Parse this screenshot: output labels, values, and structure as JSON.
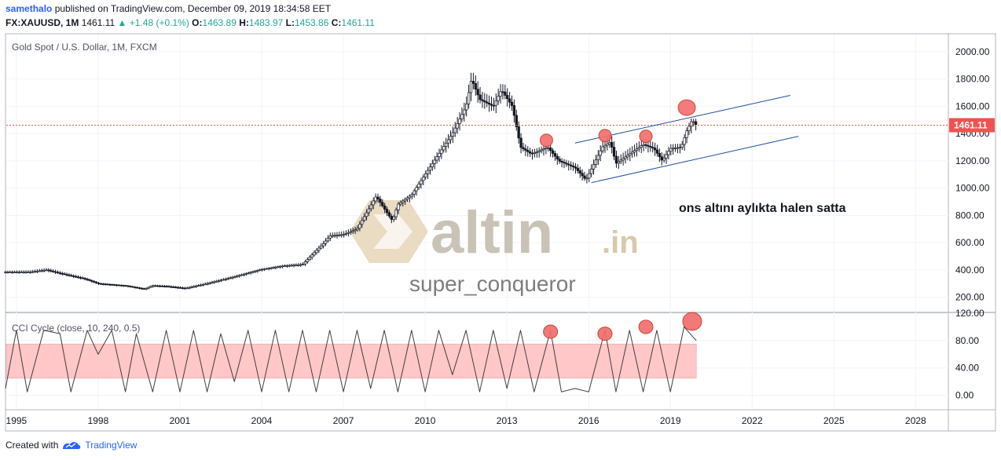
{
  "header": {
    "author": "samethalo",
    "published_text": "published on TradingView.com, December 09, 2019 18:34:58 EET",
    "symbol": "FX:XAUUSD, 1M",
    "last": "1461.11",
    "change_arrow": "▲",
    "change": "+1.48 (+0.1%)",
    "open_label": "O:",
    "open": "1463.89",
    "high_label": "H:",
    "high": "1483.97",
    "low_label": "L:",
    "low": "1453.86",
    "close_label": "C:",
    "close": "1461.11"
  },
  "main_pane": {
    "legend": "Gold Spot / U.S. Dollar, 1M, FXCM",
    "annotation": "ons altını aylıkta halen satta",
    "price_label": "1461.11",
    "watermark_brand": "altin",
    "watermark_tld": ".in",
    "watermark_user": "super_conqueror"
  },
  "indicator_pane": {
    "legend": "CCI Cycle (close, 10, 240, 0.5)"
  },
  "footer": {
    "created_with": "Created with",
    "brand": "TradingView"
  },
  "colors": {
    "up_text": "#26a69a",
    "price_line": "#ef5350",
    "price_label_bg": "#ef5350",
    "channel": "#1e4fa0",
    "marker_fill": "#f36d6d",
    "band_fill": "#ffc7c7",
    "watermark": "#c9c2b6",
    "watermark_logo": "#e6d5b8"
  },
  "chart_data": [
    {
      "type": "candlestick",
      "title": "Gold Spot / U.S. Dollar, 1M, FXCM",
      "x_ticks": [
        "1995",
        "1998",
        "2001",
        "2004",
        "2007",
        "2010",
        "2013",
        "2016",
        "2019",
        "2022",
        "2025",
        "2028"
      ],
      "y_ticks": [
        "2000.00",
        "1800.00",
        "1600.00",
        "1400.00",
        "1200.00",
        "1000.00",
        "800.00",
        "600.00",
        "400.00",
        "200.00"
      ],
      "xlim": [
        1994.6,
        2029.2
      ],
      "ylim": [
        100,
        2120
      ],
      "last_price": 1461.11,
      "price_path": [
        [
          1994.6,
          385
        ],
        [
          1995.5,
          385
        ],
        [
          1996.1,
          400
        ],
        [
          1996.6,
          375
        ],
        [
          1997.5,
          335
        ],
        [
          1998.0,
          300
        ],
        [
          1999.0,
          285
        ],
        [
          1999.7,
          260
        ],
        [
          2000.0,
          285
        ],
        [
          2000.5,
          280
        ],
        [
          2001.2,
          265
        ],
        [
          2002.0,
          300
        ],
        [
          2003.0,
          350
        ],
        [
          2004.0,
          405
        ],
        [
          2004.8,
          430
        ],
        [
          2005.5,
          440
        ],
        [
          2006.3,
          600
        ],
        [
          2006.5,
          650
        ],
        [
          2007.0,
          660
        ],
        [
          2007.5,
          700
        ],
        [
          2008.2,
          940
        ],
        [
          2008.8,
          760
        ],
        [
          2009.0,
          880
        ],
        [
          2009.5,
          950
        ],
        [
          2010.0,
          1100
        ],
        [
          2010.5,
          1250
        ],
        [
          2011.0,
          1400
        ],
        [
          2011.5,
          1600
        ],
        [
          2011.7,
          1800
        ],
        [
          2012.0,
          1650
        ],
        [
          2012.5,
          1600
        ],
        [
          2012.8,
          1720
        ],
        [
          2013.2,
          1600
        ],
        [
          2013.5,
          1300
        ],
        [
          2013.9,
          1250
        ],
        [
          2014.5,
          1300
        ],
        [
          2014.9,
          1200
        ],
        [
          2015.5,
          1150
        ],
        [
          2015.9,
          1060
        ],
        [
          2016.5,
          1300
        ],
        [
          2016.8,
          1340
        ],
        [
          2017.0,
          1180
        ],
        [
          2017.5,
          1250
        ],
        [
          2018.0,
          1320
        ],
        [
          2018.4,
          1290
        ],
        [
          2018.7,
          1200
        ],
        [
          2019.0,
          1290
        ],
        [
          2019.4,
          1300
        ],
        [
          2019.6,
          1420
        ],
        [
          2019.8,
          1500
        ],
        [
          2019.95,
          1461
        ]
      ],
      "channel_lines": [
        {
          "from": [
            2016.1,
            1040
          ],
          "to": [
            2023.7,
            1380
          ]
        },
        {
          "from": [
            2015.5,
            1330
          ],
          "to": [
            2023.4,
            1680
          ]
        }
      ],
      "markers": [
        {
          "x": 2014.45,
          "y": 1350
        },
        {
          "x": 2016.6,
          "y": 1385
        },
        {
          "x": 2018.1,
          "y": 1380
        },
        {
          "x": 2019.6,
          "y": 1590
        }
      ]
    },
    {
      "type": "line",
      "title": "CCI Cycle (close, 10, 240, 0.5)",
      "y_ticks": [
        "120.00",
        "80.00",
        "40.00",
        "0.00"
      ],
      "ylim": [
        -20,
        120
      ],
      "band": [
        25,
        75
      ],
      "x": [
        1994.6,
        1995.0,
        1995.4,
        1996.0,
        1996.6,
        1997.0,
        1997.6,
        1998.0,
        1998.5,
        1999.0,
        1999.4,
        2000.0,
        2000.5,
        2001.0,
        2001.5,
        2002.0,
        2002.5,
        2003.0,
        2003.5,
        2004.0,
        2004.5,
        2005.0,
        2005.5,
        2006.0,
        2006.5,
        2007.0,
        2007.5,
        2008.0,
        2008.5,
        2009.0,
        2009.5,
        2010.0,
        2010.5,
        2011.0,
        2011.5,
        2012.0,
        2012.5,
        2013.0,
        2013.5,
        2014.0,
        2014.6,
        2015.0,
        2015.5,
        2016.0,
        2016.6,
        2017.0,
        2017.5,
        2018.0,
        2018.5,
        2019.0,
        2019.5,
        2019.95
      ],
      "values": [
        10,
        95,
        5,
        95,
        90,
        5,
        95,
        60,
        95,
        5,
        90,
        5,
        95,
        5,
        95,
        5,
        90,
        20,
        95,
        5,
        95,
        5,
        95,
        5,
        95,
        5,
        95,
        10,
        95,
        5,
        95,
        5,
        95,
        30,
        95,
        5,
        95,
        10,
        95,
        5,
        95,
        5,
        10,
        5,
        95,
        5,
        95,
        5,
        95,
        5,
        100,
        80
      ],
      "markers": [
        {
          "x": 2014.6,
          "y": 93
        },
        {
          "x": 2016.6,
          "y": 90
        },
        {
          "x": 2018.1,
          "y": 100
        },
        {
          "x": 2019.8,
          "y": 108
        }
      ]
    }
  ]
}
